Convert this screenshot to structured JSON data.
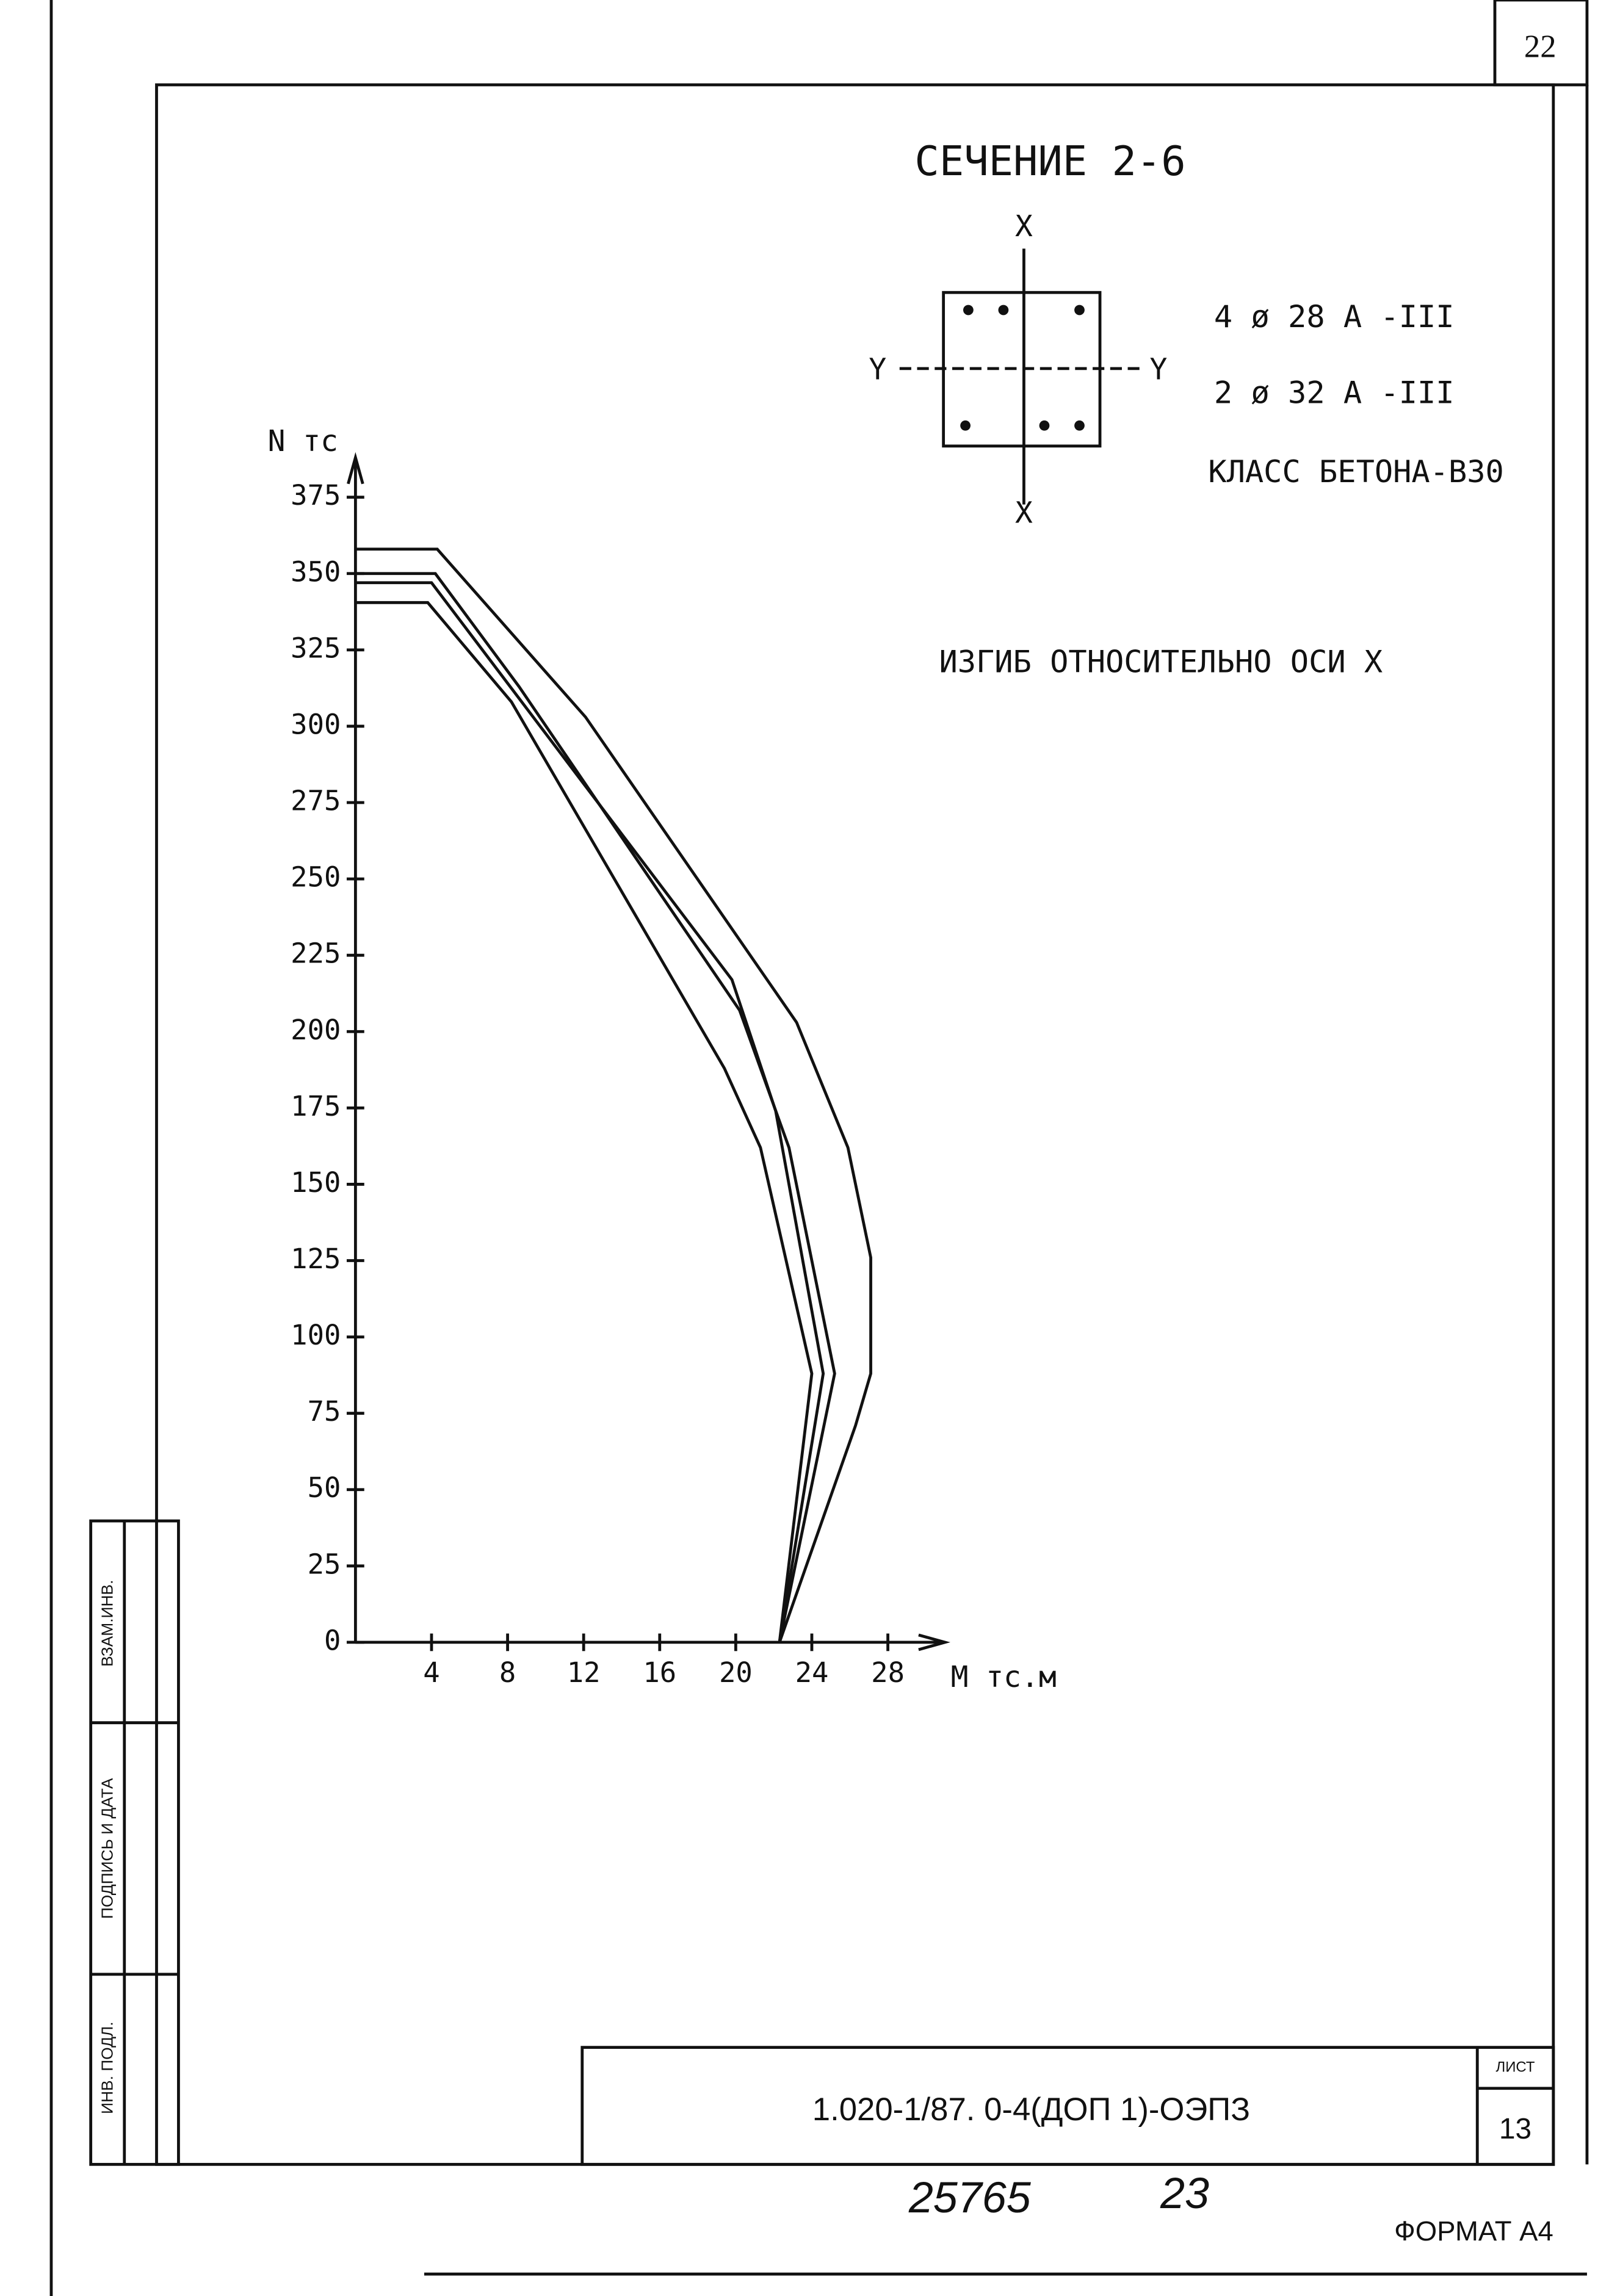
{
  "chart_data": {
    "type": "line",
    "title": "СЕЧЕНИЕ 2-6",
    "subtitle": "ИЗГИБ ОТНОСИТЕЛЬНО ОСИ X",
    "section": {
      "axis_x": "X",
      "axis_y": "Y"
    },
    "annotations": [
      "4 ø 28 А -III",
      "2 ø 32 А -III",
      "КЛАСС БЕТОНА-В30"
    ],
    "x_label": "M тс.м",
    "y_label": "N тс",
    "xlim": [
      0,
      31
    ],
    "ylim": [
      0,
      388
    ],
    "xticks": [
      4,
      8,
      12,
      16,
      20,
      24,
      28
    ],
    "yticks": [
      0,
      25,
      50,
      75,
      100,
      125,
      150,
      175,
      200,
      225,
      250,
      275,
      300,
      325,
      350,
      375
    ],
    "series": [
      {
        "color": "#111111",
        "x": [
          0,
          4.3,
          12.1,
          23.2,
          25.9,
          27.1,
          27.1,
          26.3,
          22.3
        ],
        "values": [
          358,
          358,
          303,
          203,
          162,
          126,
          88,
          71,
          0
        ]
      },
      {
        "color": "#111111",
        "x": [
          0,
          4.2,
          8.6,
          20.2,
          22.8,
          25.2,
          22.3
        ],
        "values": [
          350,
          350,
          313,
          207,
          162,
          88,
          0
        ]
      },
      {
        "color": "#111111",
        "x": [
          0,
          4,
          19.8,
          22.1,
          24.6,
          22.3
        ],
        "values": [
          347,
          347,
          217,
          174,
          88,
          0
        ]
      },
      {
        "color": "#111111",
        "x": [
          0,
          3.8,
          8.2,
          19.4,
          21.3,
          24,
          22.3
        ],
        "values": [
          340.5,
          340.5,
          308,
          188,
          162,
          88,
          0
        ]
      }
    ]
  },
  "page": {
    "sheet_number": "22",
    "stamp_code": "1.020-1/87. 0-4(ДОП 1)-ОЭПЗ",
    "stamp_sheet_label": "ЛИСТ",
    "stamp_sheet": "13",
    "handwritten": [
      "25765",
      "23"
    ],
    "format": "ФОРМАТ А4",
    "side_labels": [
      "ВЗАМ.ИНВ.",
      "ПОДПИСЬ И ДАТА",
      "ИНВ. ПОДЛ."
    ]
  }
}
